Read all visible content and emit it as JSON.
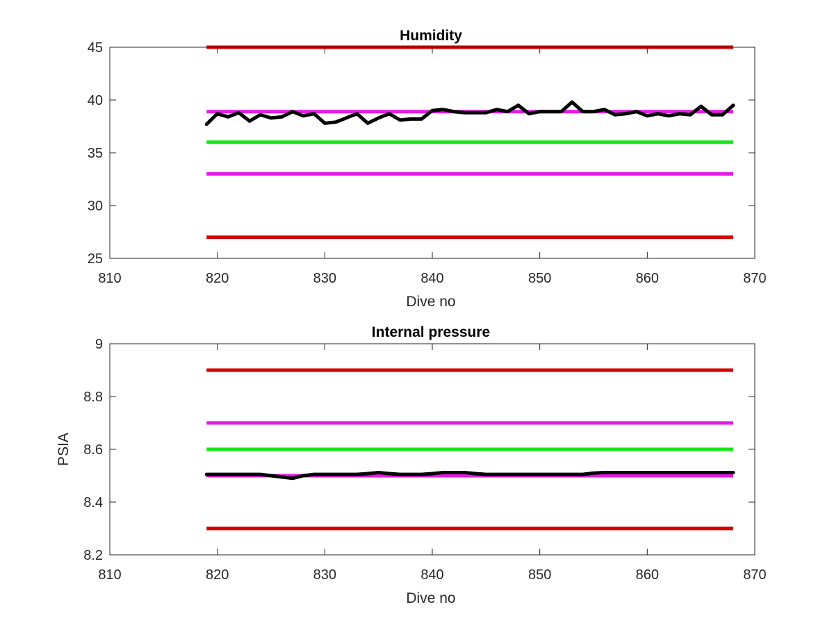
{
  "chart_data": [
    {
      "type": "line",
      "title": "Humidity",
      "xlabel": "Dive no",
      "ylabel": "",
      "xlim": [
        810,
        870
      ],
      "ylim": [
        25,
        45
      ],
      "xticks": [
        "810",
        "820",
        "830",
        "840",
        "850",
        "860",
        "870"
      ],
      "yticks": [
        "25",
        "30",
        "35",
        "40",
        "45"
      ],
      "grid": false,
      "thresholds": [
        {
          "value": 45,
          "color": "#d40000"
        },
        {
          "value": 38.9,
          "color": "#e619e6"
        },
        {
          "value": 36,
          "color": "#19e619"
        },
        {
          "value": 33,
          "color": "#e619e6"
        },
        {
          "value": 27,
          "color": "#d40000"
        }
      ],
      "threshold_range": [
        819,
        868
      ],
      "series": [
        {
          "color": "#000000",
          "x": [
            819,
            820,
            821,
            822,
            823,
            824,
            825,
            826,
            827,
            828,
            829,
            830,
            831,
            832,
            833,
            834,
            835,
            836,
            837,
            838,
            839,
            840,
            841,
            842,
            843,
            844,
            845,
            846,
            847,
            848,
            849,
            850,
            851,
            852,
            853,
            854,
            855,
            856,
            857,
            858,
            859,
            860,
            861,
            862,
            863,
            864,
            865,
            866,
            867,
            868
          ],
          "y": [
            37.7,
            38.7,
            38.4,
            38.8,
            38.0,
            38.6,
            38.3,
            38.4,
            38.9,
            38.5,
            38.7,
            37.8,
            37.9,
            38.3,
            38.7,
            37.8,
            38.3,
            38.7,
            38.1,
            38.2,
            38.2,
            39.0,
            39.1,
            38.9,
            38.8,
            38.8,
            38.8,
            39.1,
            38.9,
            39.5,
            38.7,
            38.9,
            38.9,
            38.9,
            39.8,
            38.9,
            38.9,
            39.1,
            38.6,
            38.7,
            38.9,
            38.5,
            38.7,
            38.5,
            38.7,
            38.6,
            39.4,
            38.6,
            38.6,
            39.5
          ]
        }
      ]
    },
    {
      "type": "line",
      "title": "Internal pressure",
      "xlabel": "Dive no",
      "ylabel": "PSIA",
      "xlim": [
        810,
        870
      ],
      "ylim": [
        8.2,
        9
      ],
      "xticks": [
        "810",
        "820",
        "830",
        "840",
        "850",
        "860",
        "870"
      ],
      "yticks": [
        "8.2",
        "8.4",
        "8.6",
        "8.8",
        "9"
      ],
      "grid": false,
      "thresholds": [
        {
          "value": 8.9,
          "color": "#d40000"
        },
        {
          "value": 8.7,
          "color": "#e619e6"
        },
        {
          "value": 8.6,
          "color": "#19e619"
        },
        {
          "value": 8.5,
          "color": "#e619e6"
        },
        {
          "value": 8.3,
          "color": "#d40000"
        }
      ],
      "threshold_range": [
        819,
        868
      ],
      "series": [
        {
          "color": "#000000",
          "x": [
            819,
            820,
            821,
            822,
            823,
            824,
            825,
            826,
            827,
            828,
            829,
            830,
            831,
            832,
            833,
            834,
            835,
            836,
            837,
            838,
            839,
            840,
            841,
            842,
            843,
            844,
            845,
            846,
            847,
            848,
            849,
            850,
            851,
            852,
            853,
            854,
            855,
            856,
            857,
            858,
            859,
            860,
            861,
            862,
            863,
            864,
            865,
            866,
            867,
            868
          ],
          "y": [
            8.505,
            8.505,
            8.505,
            8.505,
            8.505,
            8.505,
            8.5,
            8.495,
            8.49,
            8.5,
            8.505,
            8.505,
            8.505,
            8.505,
            8.505,
            8.508,
            8.512,
            8.508,
            8.505,
            8.505,
            8.505,
            8.508,
            8.512,
            8.512,
            8.512,
            8.508,
            8.505,
            8.505,
            8.505,
            8.505,
            8.505,
            8.505,
            8.505,
            8.505,
            8.505,
            8.505,
            8.51,
            8.512,
            8.512,
            8.512,
            8.512,
            8.512,
            8.512,
            8.512,
            8.512,
            8.512,
            8.512,
            8.512,
            8.512,
            8.512
          ]
        }
      ]
    }
  ]
}
